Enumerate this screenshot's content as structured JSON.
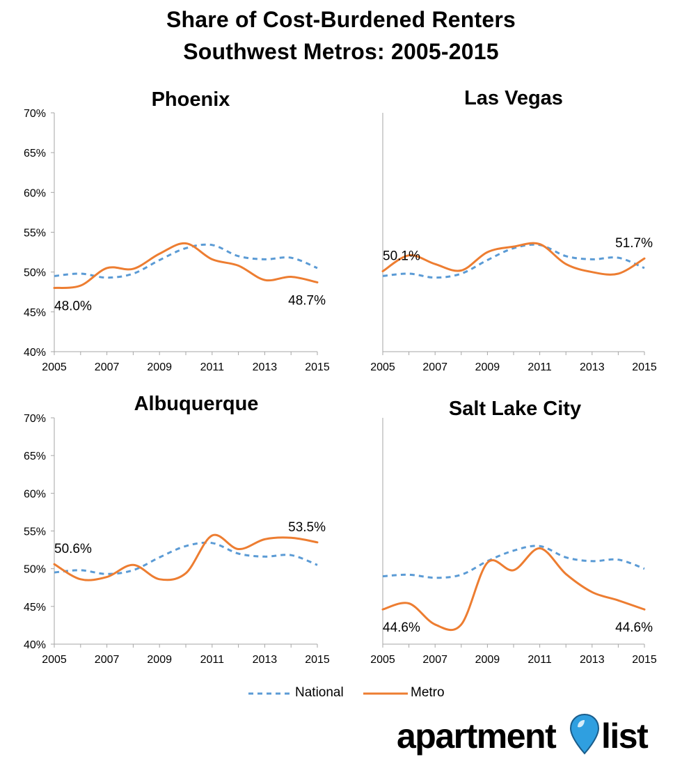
{
  "title_line1": "Share of Cost-Burdened Renters",
  "title_line2": "Southwest Metros: 2005-2015",
  "legend": {
    "national": "National",
    "metro": "Metro"
  },
  "colors": {
    "national": "#5b9bd5",
    "metro": "#ed7d31",
    "axis": "#a6a6a6"
  },
  "logo": {
    "left": "apartment",
    "right": "list",
    "pin_color": "#2f9fe0"
  },
  "chart_data": [
    {
      "type": "line",
      "title": "Phoenix",
      "x": [
        2005,
        2006,
        2007,
        2008,
        2009,
        2010,
        2011,
        2012,
        2013,
        2014,
        2015
      ],
      "xticks": [
        "2005",
        "2007",
        "2009",
        "2011",
        "2013",
        "2015"
      ],
      "yticks": [
        "40%",
        "45%",
        "50%",
        "55%",
        "60%",
        "65%",
        "70%"
      ],
      "ylim": [
        40,
        70
      ],
      "series": [
        {
          "name": "National",
          "values": [
            49.5,
            49.8,
            49.3,
            49.8,
            51.5,
            53.0,
            53.4,
            52.0,
            51.6,
            51.8,
            50.5
          ]
        },
        {
          "name": "Metro",
          "values": [
            48.0,
            48.3,
            50.5,
            50.4,
            52.3,
            53.6,
            51.6,
            50.8,
            49.0,
            49.4,
            48.7
          ]
        }
      ],
      "annotations": [
        {
          "label": "48.0%",
          "series": 1,
          "index": 0,
          "pos": "below"
        },
        {
          "label": "48.7%",
          "series": 1,
          "index": 10,
          "pos": "below"
        }
      ]
    },
    {
      "type": "line",
      "title": "Las Vegas",
      "x": [
        2005,
        2006,
        2007,
        2008,
        2009,
        2010,
        2011,
        2012,
        2013,
        2014,
        2015
      ],
      "xticks": [
        "2005",
        "2007",
        "2009",
        "2011",
        "2013",
        "2015"
      ],
      "yticks": [],
      "ylim": [
        40,
        70
      ],
      "series": [
        {
          "name": "National",
          "values": [
            49.5,
            49.8,
            49.3,
            49.8,
            51.5,
            53.0,
            53.4,
            52.0,
            51.6,
            51.8,
            50.5
          ]
        },
        {
          "name": "Metro",
          "values": [
            50.1,
            52.1,
            51.0,
            50.2,
            52.5,
            53.2,
            53.5,
            51.0,
            50.0,
            49.8,
            51.7
          ]
        }
      ],
      "annotations": [
        {
          "label": "50.1%",
          "series": 1,
          "index": 0,
          "pos": "above"
        },
        {
          "label": "51.7%",
          "series": 1,
          "index": 10,
          "pos": "above"
        }
      ]
    },
    {
      "type": "line",
      "title": "Albuquerque",
      "x": [
        2005,
        2006,
        2007,
        2008,
        2009,
        2010,
        2011,
        2012,
        2013,
        2014,
        2015
      ],
      "xticks": [
        "2005",
        "2007",
        "2009",
        "2011",
        "2013",
        "2015"
      ],
      "yticks": [
        "40%",
        "45%",
        "50%",
        "55%",
        "60%",
        "65%",
        "70%"
      ],
      "ylim": [
        40,
        70
      ],
      "series": [
        {
          "name": "National",
          "values": [
            49.5,
            49.8,
            49.3,
            49.8,
            51.5,
            53.0,
            53.4,
            52.0,
            51.6,
            51.8,
            50.5
          ]
        },
        {
          "name": "Metro",
          "values": [
            50.6,
            48.6,
            48.9,
            50.5,
            48.6,
            49.4,
            54.4,
            52.6,
            53.9,
            54.1,
            53.5
          ]
        }
      ],
      "annotations": [
        {
          "label": "50.6%",
          "series": 1,
          "index": 0,
          "pos": "above"
        },
        {
          "label": "53.5%",
          "series": 1,
          "index": 10,
          "pos": "above"
        }
      ]
    },
    {
      "type": "line",
      "title": "Salt Lake City",
      "x": [
        2005,
        2006,
        2007,
        2008,
        2009,
        2010,
        2011,
        2012,
        2013,
        2014,
        2015
      ],
      "xticks": [
        "2005",
        "2007",
        "2009",
        "2011",
        "2013",
        "2015"
      ],
      "yticks": [],
      "ylim": [
        40,
        70
      ],
      "series": [
        {
          "name": "National",
          "values": [
            49.0,
            49.2,
            48.8,
            49.2,
            51.0,
            52.4,
            53.0,
            51.5,
            51.0,
            51.2,
            50.0
          ]
        },
        {
          "name": "Metro",
          "values": [
            44.6,
            45.4,
            42.6,
            42.6,
            50.8,
            49.8,
            52.7,
            49.3,
            46.9,
            45.8,
            44.6
          ]
        }
      ],
      "annotations": [
        {
          "label": "44.6%",
          "series": 1,
          "index": 0,
          "pos": "below"
        },
        {
          "label": "44.6%",
          "series": 1,
          "index": 10,
          "pos": "below"
        }
      ]
    }
  ]
}
